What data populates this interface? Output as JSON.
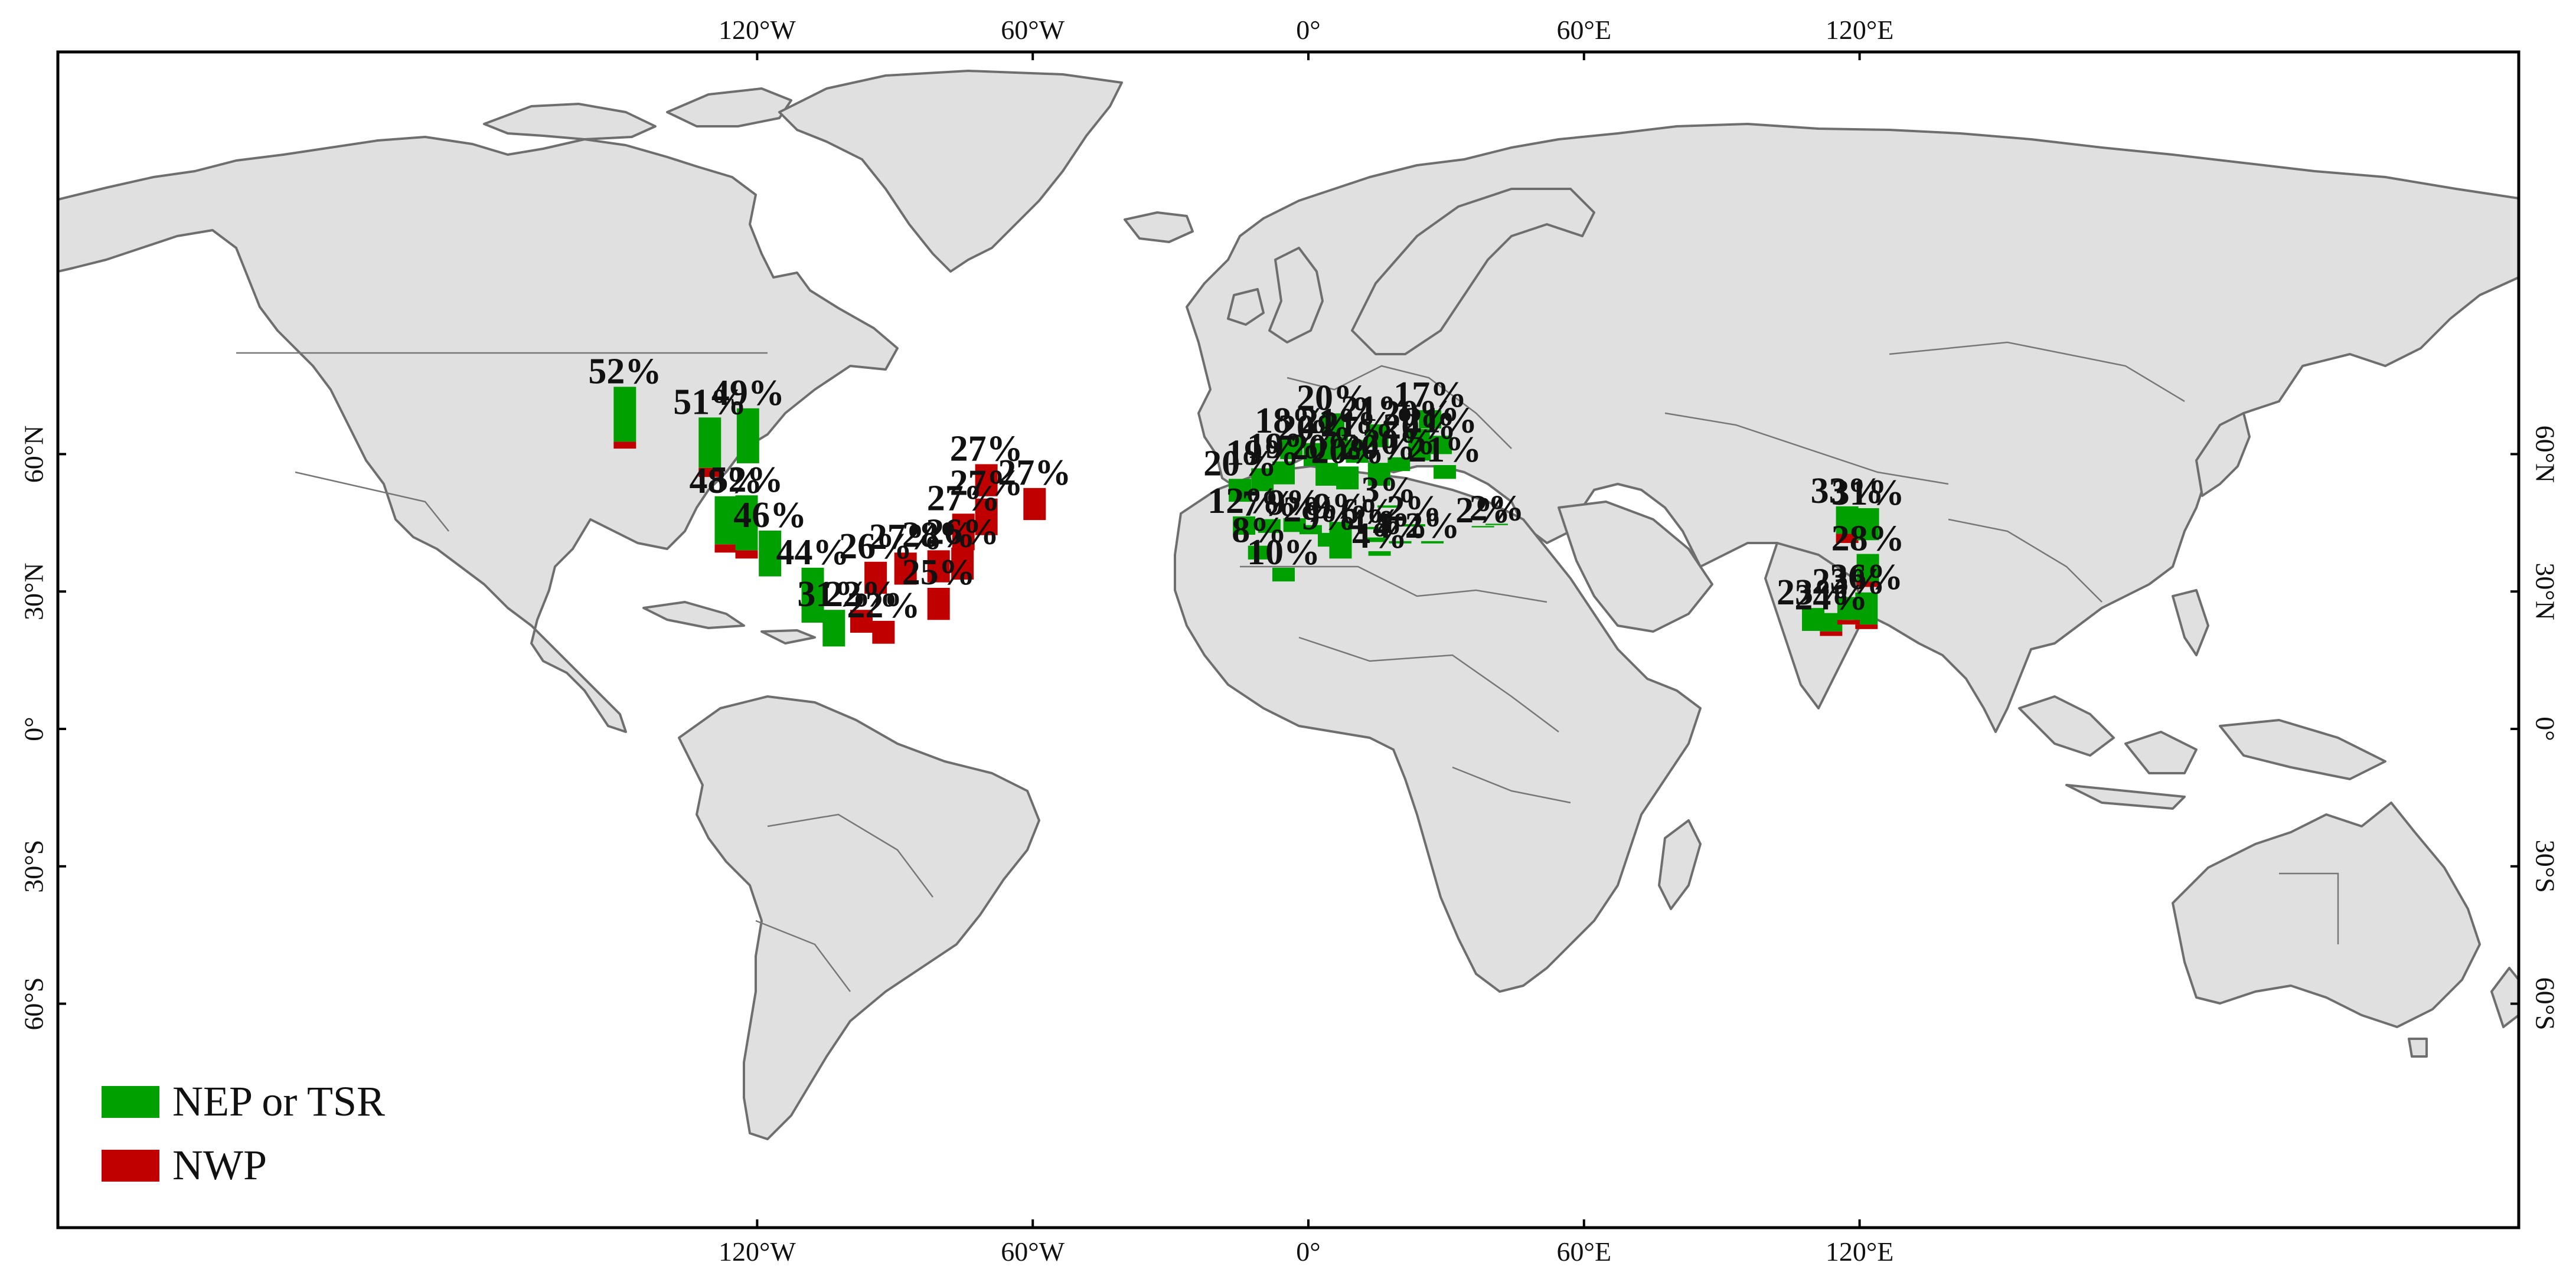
{
  "colors": {
    "nep_tsr": "#00a000",
    "nwp": "#c00000",
    "land": "#e0e0e0",
    "ocean": "#ffffff",
    "coast": "#6e6e6e"
  },
  "axes": {
    "lon_ticks": [
      "120°W",
      "60°W",
      "0°",
      "60°E",
      "120°E"
    ],
    "lat_ticks": [
      "60°N",
      "30°N",
      "0°",
      "30°S",
      "60°S"
    ]
  },
  "legend": [
    {
      "label": "NEP or TSR",
      "color": "#00a000"
    },
    {
      "label": "NWP",
      "color": "#c00000"
    }
  ],
  "sites": [
    {
      "label": "52%",
      "lon": -148.8,
      "lat": 61.2,
      "nep": 12.0,
      "nwp": 1.5
    },
    {
      "label": "51%",
      "lon": -130.3,
      "lat": 55.0,
      "nep": 11.0,
      "nwp": 2.0
    },
    {
      "label": "49%",
      "lon": -122.0,
      "lat": 58.0,
      "nep": 12.0,
      "nwp": 0
    },
    {
      "label": "48%",
      "lon": -126.8,
      "lat": 38.5,
      "nep": 10.5,
      "nwp": 1.8
    },
    {
      "label": "52%",
      "lon": -122.3,
      "lat": 37.2,
      "nep": 12.0,
      "nwp": 1.8
    },
    {
      "label": "46%",
      "lon": -117.2,
      "lat": 33.3,
      "nep": 10.0,
      "nwp": 0
    },
    {
      "label": "44%",
      "lon": -107.9,
      "lat": 23.2,
      "nep": 12.0,
      "nwp": 0
    },
    {
      "label": "31%",
      "lon": -103.3,
      "lat": 18.0,
      "nep": 8.0,
      "nwp": 0
    },
    {
      "label": "22%",
      "lon": -97.3,
      "lat": 21.0,
      "nep": 0,
      "nwp": 5.0
    },
    {
      "label": "26%",
      "lon": -94.2,
      "lat": 29.5,
      "nep": 0,
      "nwp": 7.0
    },
    {
      "label": "22%",
      "lon": -92.5,
      "lat": 18.6,
      "nep": 0,
      "nwp": 5.0
    },
    {
      "label": "27%",
      "lon": -87.7,
      "lat": 31.5,
      "nep": 0,
      "nwp": 7.0
    },
    {
      "label": "25%",
      "lon": -80.5,
      "lat": 23.8,
      "nep": 0,
      "nwp": 7.0
    },
    {
      "label": "26%",
      "lon": -75.3,
      "lat": 32.6,
      "nep": 0,
      "nwp": 7.0
    },
    {
      "label": "28%",
      "lon": -80.5,
      "lat": 32.0,
      "nep": 0,
      "nwp": 7.0
    },
    {
      "label": "27%",
      "lon": -75.1,
      "lat": 39.0,
      "nep": 0,
      "nwp": 8.0
    },
    {
      "label": "27%",
      "lon": -70.1,
      "lat": 42.3,
      "nep": 0,
      "nwp": 8.0
    },
    {
      "label": "27%",
      "lon": -70.1,
      "lat": 50.8,
      "nep": 0,
      "nwp": 7.0
    },
    {
      "label": "27%",
      "lon": -59.6,
      "lat": 45.6,
      "nep": 0,
      "nwp": 7.0
    },
    {
      "label": "20%",
      "lon": -14.9,
      "lat": 49.6,
      "nep": 5.0,
      "nwp": 0
    },
    {
      "label": "12%",
      "lon": -14.0,
      "lat": 42.4,
      "nep": 4.0,
      "nwp": 0
    },
    {
      "label": "8%",
      "lon": -10.7,
      "lat": 37.0,
      "nep": 3.0,
      "nwp": 0
    },
    {
      "label": "19%",
      "lon": -10.0,
      "lat": 51.9,
      "nep": 5.0,
      "nwp": 0
    },
    {
      "label": "7%",
      "lon": -8.5,
      "lat": 42.8,
      "nep": 3.0,
      "nwp": 0
    },
    {
      "label": "10%",
      "lon": -5.4,
      "lat": 32.2,
      "nep": 3.0,
      "nwp": 0
    },
    {
      "label": "18%",
      "lon": -3.7,
      "lat": 58.9,
      "nep": 5.0,
      "nwp": 0
    },
    {
      "label": "19%",
      "lon": -5.4,
      "lat": 53.4,
      "nep": 5.0,
      "nwp": 0
    },
    {
      "label": "9%",
      "lon": -3.0,
      "lat": 43.0,
      "nep": 3.0,
      "nwp": 0
    },
    {
      "label": "2%",
      "lon": 0.5,
      "lat": 42.5,
      "nep": 2.0,
      "nwp": 0
    },
    {
      "label": "20%",
      "lon": 1.4,
      "lat": 57.4,
      "nep": 5.0,
      "nwp": 0
    },
    {
      "label": "20%",
      "lon": 5.4,
      "lat": 63.9,
      "nep": 5.0,
      "nwp": 0
    },
    {
      "label": "21%",
      "lon": 6.2,
      "lat": 58.8,
      "nep": 5.0,
      "nwp": 0
    },
    {
      "label": "9%",
      "lon": 4.5,
      "lat": 39.8,
      "nep": 3.0,
      "nwp": 0
    },
    {
      "label": "20%",
      "lon": 4.0,
      "lat": 53.1,
      "nep": 5.0,
      "nwp": 0
    },
    {
      "label": "9%",
      "lon": 7.0,
      "lat": 37.2,
      "nep": 8.0,
      "nwp": 0
    },
    {
      "label": "20%",
      "lon": 8.5,
      "lat": 52.3,
      "nep": 5.0,
      "nwp": 0
    },
    {
      "label": "21%",
      "lon": 10.6,
      "lat": 58.1,
      "nep": 5.0,
      "nwp": 0
    },
    {
      "label": "6%",
      "lon": 13.0,
      "lat": 43.6,
      "nep": 0.5,
      "nwp": 0
    },
    {
      "label": "21%",
      "lon": 15.0,
      "lat": 61.5,
      "nep": 5.0,
      "nwp": 0
    },
    {
      "label": "20%",
      "lon": 15.4,
      "lat": 53.1,
      "nep": 5.0,
      "nwp": 0
    },
    {
      "label": "4%",
      "lon": 14.5,
      "lat": 40.8,
      "nep": 1.0,
      "nwp": 0
    },
    {
      "label": "3%",
      "lon": 17.5,
      "lat": 48.3,
      "nep": 0.5,
      "nwp": 0
    },
    {
      "label": "4%",
      "lon": 15.5,
      "lat": 37.8,
      "nep": 1.0,
      "nwp": 0
    },
    {
      "label": "4%",
      "lon": 20.0,
      "lat": 40.5,
      "nep": 0.5,
      "nwp": 0
    },
    {
      "label": "2%",
      "lon": 23.0,
      "lat": 44.2,
      "nep": 0.5,
      "nwp": 0
    },
    {
      "label": "2%",
      "lon": 27.0,
      "lat": 40.5,
      "nep": 0.5,
      "nwp": 0
    },
    {
      "label": "20%",
      "lon": 19.7,
      "lat": 56.3,
      "nep": 3.0,
      "nwp": 0
    },
    {
      "label": "20%",
      "lon": 24.0,
      "lat": 62.5,
      "nep": 3.0,
      "nwp": 0
    },
    {
      "label": "17%",
      "lon": 26.5,
      "lat": 65.6,
      "nep": 4.0,
      "nwp": 0
    },
    {
      "label": "20%",
      "lon": 24.2,
      "lat": 58.6,
      "nep": 4.0,
      "nwp": 0
    },
    {
      "label": "21%",
      "lon": 28.8,
      "lat": 60.0,
      "nep": 4.0,
      "nwp": 0
    },
    {
      "label": "21%",
      "lon": 29.7,
      "lat": 54.6,
      "nep": 3.0,
      "nwp": 0
    },
    {
      "label": "2%",
      "lon": 38.0,
      "lat": 44.0,
      "nep": 0.3,
      "nwp": 0
    },
    {
      "label": "2%",
      "lon": 41.0,
      "lat": 44.5,
      "nep": 0.3,
      "nwp": 0
    },
    {
      "label": "33%",
      "lon": 117.3,
      "lat": 40.6,
      "nep": 6.0,
      "nwp": 2.0
    },
    {
      "label": "31%",
      "lon": 121.8,
      "lat": 41.2,
      "nep": 7.0,
      "nwp": 0
    },
    {
      "label": "28%",
      "lon": 121.8,
      "lat": 31.0,
      "nep": 6.0,
      "nwp": 1.2
    },
    {
      "label": "36%",
      "lon": 121.5,
      "lat": 21.8,
      "nep": 7.0,
      "nwp": 1.0
    },
    {
      "label": "23%",
      "lon": 109.9,
      "lat": 21.4,
      "nep": 5.0,
      "nwp": 0
    },
    {
      "label": "24%",
      "lon": 113.8,
      "lat": 20.3,
      "nep": 4.0,
      "nwp": 1.0
    },
    {
      "label": "23%",
      "lon": 117.6,
      "lat": 22.8,
      "nep": 5.0,
      "nwp": 1.0
    }
  ]
}
